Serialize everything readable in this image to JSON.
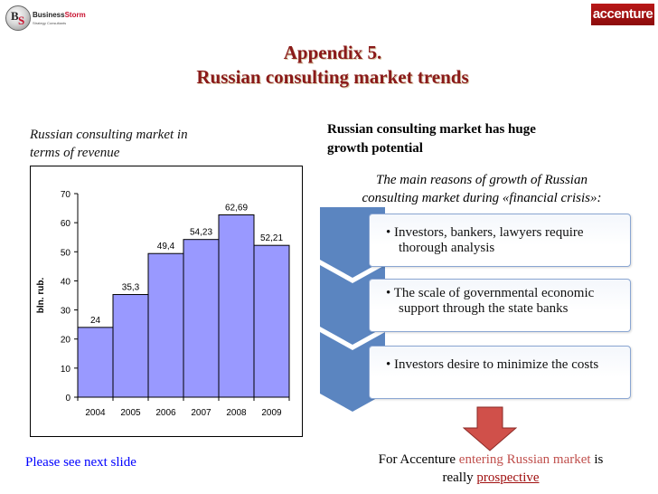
{
  "logos": {
    "left_brand": "Business",
    "left_brand_accent": "Storm",
    "left_tagline": "Strategy Consultants",
    "left_monogram_b": "B",
    "left_monogram_s": "S",
    "right_brand": "accenture"
  },
  "title": {
    "line1": "Appendix 5.",
    "line2": "Russian consulting market trends"
  },
  "chart_caption": {
    "line1": "Russian consulting market in",
    "line2": "terms of revenue"
  },
  "chart_data": {
    "type": "bar",
    "categories": [
      "2004",
      "2005",
      "2006",
      "2007",
      "2008",
      "2009"
    ],
    "values": [
      24,
      35.3,
      49.4,
      54.23,
      62.69,
      52.21
    ],
    "value_labels": [
      "24",
      "35,3",
      "49,4",
      "54,23",
      "62,69",
      "52,21"
    ],
    "y_ticks": [
      "0",
      "10",
      "20",
      "30",
      "40",
      "50",
      "60",
      "70"
    ],
    "ylim": [
      0,
      70
    ],
    "ylabel": "bln. rub.",
    "xlabel": "",
    "title": "",
    "bar_color": "#9999ff",
    "grid": false,
    "legend": false
  },
  "right_panel": {
    "heading_line1": "Russian consulting market has huge",
    "heading_line2": "growth potential",
    "intro_line1": "The main reasons of growth of Russian",
    "intro_line2": "consulting market during «financial crisis»:",
    "reasons": [
      "• Investors, bankers, lawyers require thorough analysis",
      "• The scale of governmental economic support through the state banks",
      "• Investors desire to minimize the costs"
    ],
    "arrow_color": "#5b85c0"
  },
  "footer": {
    "prefix": "For Accenture ",
    "highlight": "entering Russian market",
    "suffix": " is",
    "line2_prefix": "really ",
    "line2_highlight": "prospective"
  },
  "next_slide_link": "Please see next slide"
}
